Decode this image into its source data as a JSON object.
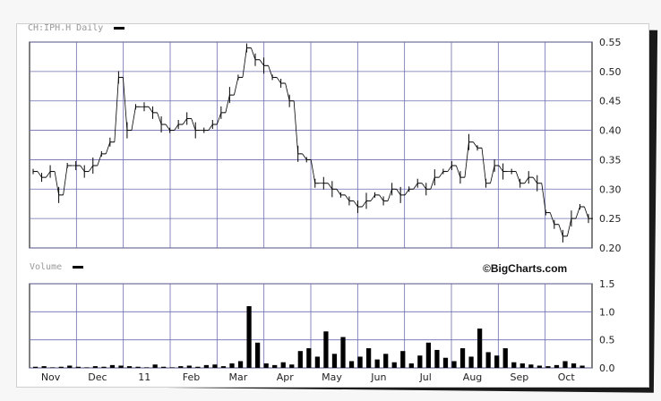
{
  "chart_title": "CH:IPH.H Daily",
  "volume_title": "Volume",
  "brand": "©BigCharts.com",
  "chart_data": [
    {
      "type": "line",
      "name": "price",
      "x_ticks": [
        "Nov",
        "Dec",
        "11",
        "Feb",
        "Mar",
        "Apr",
        "May",
        "Jun",
        "Jul",
        "Aug",
        "Sep",
        "Oct"
      ],
      "y_ticks": [
        0.55,
        0.5,
        0.45,
        0.4,
        0.35,
        0.3,
        0.25,
        0.2
      ],
      "ylim": [
        0.2,
        0.55
      ],
      "grid": true,
      "series_points": [
        {
          "t": 0,
          "v": 0.33
        },
        {
          "t": 1,
          "v": 0.32
        },
        {
          "t": 2,
          "v": 0.33
        },
        {
          "t": 3,
          "v": 0.29
        },
        {
          "t": 4,
          "v": 0.34
        },
        {
          "t": 5,
          "v": 0.34
        },
        {
          "t": 6,
          "v": 0.33
        },
        {
          "t": 7,
          "v": 0.34
        },
        {
          "t": 8,
          "v": 0.36
        },
        {
          "t": 9,
          "v": 0.38
        },
        {
          "t": 10,
          "v": 0.49
        },
        {
          "t": 11,
          "v": 0.4
        },
        {
          "t": 12,
          "v": 0.44
        },
        {
          "t": 13,
          "v": 0.44
        },
        {
          "t": 14,
          "v": 0.43
        },
        {
          "t": 15,
          "v": 0.41
        },
        {
          "t": 16,
          "v": 0.4
        },
        {
          "t": 17,
          "v": 0.41
        },
        {
          "t": 18,
          "v": 0.42
        },
        {
          "t": 19,
          "v": 0.4
        },
        {
          "t": 20,
          "v": 0.4
        },
        {
          "t": 21,
          "v": 0.41
        },
        {
          "t": 22,
          "v": 0.43
        },
        {
          "t": 23,
          "v": 0.46
        },
        {
          "t": 24,
          "v": 0.49
        },
        {
          "t": 25,
          "v": 0.54
        },
        {
          "t": 26,
          "v": 0.52
        },
        {
          "t": 27,
          "v": 0.51
        },
        {
          "t": 28,
          "v": 0.49
        },
        {
          "t": 29,
          "v": 0.48
        },
        {
          "t": 30,
          "v": 0.45
        },
        {
          "t": 31,
          "v": 0.36
        },
        {
          "t": 32,
          "v": 0.35
        },
        {
          "t": 33,
          "v": 0.31
        },
        {
          "t": 34,
          "v": 0.31
        },
        {
          "t": 35,
          "v": 0.3
        },
        {
          "t": 36,
          "v": 0.29
        },
        {
          "t": 37,
          "v": 0.28
        },
        {
          "t": 38,
          "v": 0.27
        },
        {
          "t": 39,
          "v": 0.28
        },
        {
          "t": 40,
          "v": 0.29
        },
        {
          "t": 41,
          "v": 0.28
        },
        {
          "t": 42,
          "v": 0.3
        },
        {
          "t": 43,
          "v": 0.29
        },
        {
          "t": 44,
          "v": 0.3
        },
        {
          "t": 45,
          "v": 0.31
        },
        {
          "t": 46,
          "v": 0.3
        },
        {
          "t": 47,
          "v": 0.32
        },
        {
          "t": 48,
          "v": 0.33
        },
        {
          "t": 49,
          "v": 0.34
        },
        {
          "t": 50,
          "v": 0.32
        },
        {
          "t": 51,
          "v": 0.38
        },
        {
          "t": 52,
          "v": 0.37
        },
        {
          "t": 53,
          "v": 0.31
        },
        {
          "t": 54,
          "v": 0.34
        },
        {
          "t": 55,
          "v": 0.33
        },
        {
          "t": 56,
          "v": 0.33
        },
        {
          "t": 57,
          "v": 0.31
        },
        {
          "t": 58,
          "v": 0.32
        },
        {
          "t": 59,
          "v": 0.31
        },
        {
          "t": 60,
          "v": 0.26
        },
        {
          "t": 61,
          "v": 0.24
        },
        {
          "t": 62,
          "v": 0.22
        },
        {
          "t": 63,
          "v": 0.25
        },
        {
          "t": 64,
          "v": 0.27
        },
        {
          "t": 65,
          "v": 0.25
        }
      ],
      "total_days": 65
    },
    {
      "type": "bar",
      "name": "volume",
      "y_ticks": [
        1.5,
        1.0,
        0.5,
        0.0
      ],
      "ylim": [
        0,
        1.5
      ],
      "values": [
        0.02,
        0.03,
        0.01,
        0.02,
        0.04,
        0.02,
        0.01,
        0.03,
        0.02,
        0.05,
        0.04,
        0.03,
        0.02,
        0.01,
        0.06,
        0.02,
        0.01,
        0.03,
        0.04,
        0.02,
        0.05,
        0.06,
        0.03,
        0.08,
        0.12,
        1.1,
        0.45,
        0.08,
        0.05,
        0.1,
        0.06,
        0.3,
        0.35,
        0.2,
        0.65,
        0.25,
        0.55,
        0.12,
        0.2,
        0.35,
        0.15,
        0.25,
        0.1,
        0.3,
        0.08,
        0.22,
        0.45,
        0.32,
        0.18,
        0.12,
        0.35,
        0.2,
        0.7,
        0.28,
        0.22,
        0.35,
        0.1,
        0.08,
        0.06,
        0.04,
        0.03,
        0.05,
        0.12,
        0.08,
        0.04
      ]
    }
  ]
}
